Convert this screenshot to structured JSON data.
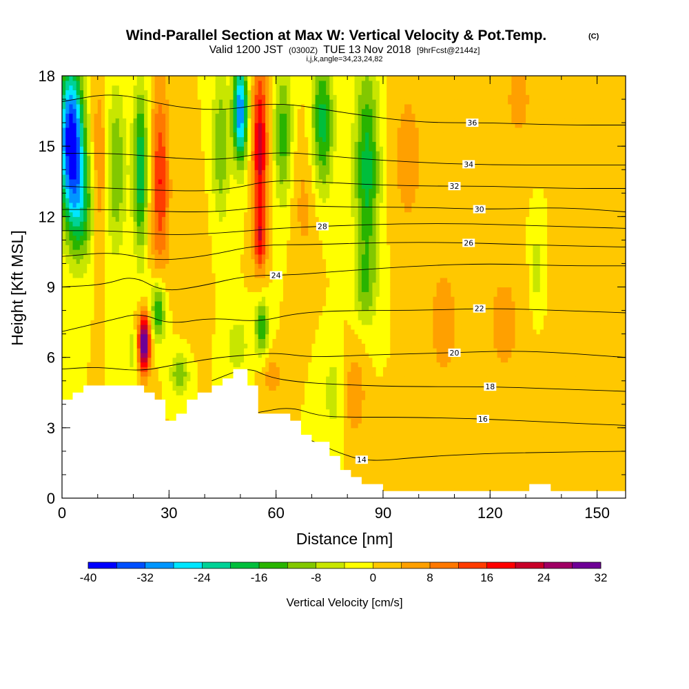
{
  "chart_data": {
    "type": "heatmap",
    "title": "Wind-Parallel Section at Max W: Vertical Velocity & Pot.Temp.",
    "title_tag": "(C)",
    "subtitle": {
      "valid": "Valid 1200 JST",
      "utc": "(0300Z)",
      "date": "TUE 13 Nov 2018",
      "fcst": "[9hrFcst@2144z]"
    },
    "subtitle2": "i,j,k,angle=34,23,24,82",
    "xlabel": "Distance [nm]",
    "ylabel": "Height [Kft MSL]",
    "xlim": [
      0,
      158
    ],
    "ylim": [
      0,
      18
    ],
    "x_ticks": [
      {
        "value": 0,
        "label": "0"
      },
      {
        "value": 30,
        "label": "30"
      },
      {
        "value": 60,
        "label": "60"
      },
      {
        "value": 90,
        "label": "90"
      },
      {
        "value": 120,
        "label": "120"
      },
      {
        "value": 150,
        "label": "150"
      }
    ],
    "y_ticks": [
      {
        "value": 0,
        "label": "0"
      },
      {
        "value": 3,
        "label": "3"
      },
      {
        "value": 6,
        "label": "6"
      },
      {
        "value": 9,
        "label": "9"
      },
      {
        "value": 12,
        "label": "12"
      },
      {
        "value": 15,
        "label": "15"
      },
      {
        "value": 18,
        "label": "18"
      }
    ],
    "background_color": "#ffe600",
    "colorbar": {
      "label": "Vertical Velocity [cm/s]",
      "colors": [
        "#0000ff",
        "#0050ff",
        "#0096ff",
        "#00e6ff",
        "#00d296",
        "#00be3c",
        "#28b400",
        "#82c800",
        "#c8e600",
        "#ffff00",
        "#ffc800",
        "#ffa000",
        "#ff7800",
        "#ff3c00",
        "#ff0000",
        "#c80028",
        "#a00064",
        "#6e0096"
      ],
      "ticks": [
        {
          "value": -40,
          "label": "-40"
        },
        {
          "value": -32,
          "label": "-32"
        },
        {
          "value": -24,
          "label": "-24"
        },
        {
          "value": -16,
          "label": "-16"
        },
        {
          "value": -8,
          "label": "-8"
        },
        {
          "value": 0,
          "label": "0"
        },
        {
          "value": 8,
          "label": "8"
        },
        {
          "value": 16,
          "label": "16"
        },
        {
          "value": 24,
          "label": "24"
        },
        {
          "value": 32,
          "label": "32"
        }
      ]
    },
    "terrain": [
      [
        0,
        4.2
      ],
      [
        3,
        4.2
      ],
      [
        3,
        4.5
      ],
      [
        6,
        4.5
      ],
      [
        6,
        4.8
      ],
      [
        23,
        4.8
      ],
      [
        23,
        4.5
      ],
      [
        26,
        4.5
      ],
      [
        26,
        4.2
      ],
      [
        29,
        4.2
      ],
      [
        29,
        3.3
      ],
      [
        32,
        3.3
      ],
      [
        32,
        3.6
      ],
      [
        35,
        3.6
      ],
      [
        35,
        4.2
      ],
      [
        38,
        4.2
      ],
      [
        38,
        4.5
      ],
      [
        42,
        4.5
      ],
      [
        42,
        4.8
      ],
      [
        45,
        4.8
      ],
      [
        45,
        5.1
      ],
      [
        48,
        5.1
      ],
      [
        48,
        5.5
      ],
      [
        52,
        5.5
      ],
      [
        52,
        4.8
      ],
      [
        55,
        4.8
      ],
      [
        55,
        3.6
      ],
      [
        64,
        3.6
      ],
      [
        64,
        3.3
      ],
      [
        67,
        3.3
      ],
      [
        67,
        2.7
      ],
      [
        70,
        2.7
      ],
      [
        70,
        2.4
      ],
      [
        75,
        2.4
      ],
      [
        75,
        1.8
      ],
      [
        78,
        1.8
      ],
      [
        78,
        1.2
      ],
      [
        81,
        1.2
      ],
      [
        81,
        0.9
      ],
      [
        84,
        0.9
      ],
      [
        84,
        0.6
      ],
      [
        90,
        0.6
      ],
      [
        90,
        0.3
      ],
      [
        131,
        0.3
      ],
      [
        131,
        0.6
      ],
      [
        137,
        0.6
      ],
      [
        137,
        0.3
      ],
      [
        158,
        0.3
      ],
      [
        158,
        0
      ],
      [
        0,
        0
      ]
    ],
    "w_features": [
      {
        "x": 2.5,
        "y": 15.5,
        "sx": 3.5,
        "sy": 3.0,
        "w": -38
      },
      {
        "x": 5.0,
        "y": 12.5,
        "sx": 4.0,
        "sy": 2.5,
        "w": -18
      },
      {
        "x": 10.5,
        "y": 14.0,
        "sx": 2.5,
        "sy": 3.5,
        "w": 10
      },
      {
        "x": 15.0,
        "y": 14.0,
        "sx": 3.0,
        "sy": 3.5,
        "w": -12
      },
      {
        "x": 22.0,
        "y": 14.0,
        "sx": 2.0,
        "sy": 3.5,
        "w": -20
      },
      {
        "x": 27.5,
        "y": 13.5,
        "sx": 2.5,
        "sy": 4.0,
        "w": 16
      },
      {
        "x": 23.0,
        "y": 6.6,
        "sx": 1.7,
        "sy": 1.2,
        "w": 34
      },
      {
        "x": 27.0,
        "y": 8.0,
        "sx": 2.0,
        "sy": 1.3,
        "w": -18
      },
      {
        "x": 20.0,
        "y": 6.3,
        "sx": 1.6,
        "sy": 0.9,
        "w": -8
      },
      {
        "x": 33.0,
        "y": 5.3,
        "sx": 2.5,
        "sy": 0.9,
        "w": -12
      },
      {
        "x": 44.5,
        "y": 15.0,
        "sx": 2.5,
        "sy": 3.0,
        "w": -12
      },
      {
        "x": 50.0,
        "y": 16.5,
        "sx": 2.0,
        "sy": 2.2,
        "w": -32
      },
      {
        "x": 55.5,
        "y": 15.0,
        "sx": 2.1,
        "sy": 3.5,
        "w": 22
      },
      {
        "x": 55.5,
        "y": 11.0,
        "sx": 1.8,
        "sy": 1.4,
        "w": 14
      },
      {
        "x": 62.0,
        "y": 15.5,
        "sx": 2.5,
        "sy": 3.0,
        "w": -14
      },
      {
        "x": 73.0,
        "y": 16.0,
        "sx": 3.0,
        "sy": 3.0,
        "w": -18
      },
      {
        "x": 68.0,
        "y": 12.5,
        "sx": 4.0,
        "sy": 3.0,
        "w": 5
      },
      {
        "x": 85.5,
        "y": 14.0,
        "sx": 3.5,
        "sy": 4.5,
        "w": -18
      },
      {
        "x": 85.0,
        "y": 9.0,
        "sx": 3.0,
        "sy": 1.5,
        "w": -8
      },
      {
        "x": 56.0,
        "y": 7.3,
        "sx": 2.0,
        "sy": 1.2,
        "w": -15
      },
      {
        "x": 49.0,
        "y": 6.5,
        "sx": 3.0,
        "sy": 1.2,
        "w": -8
      },
      {
        "x": 59.0,
        "y": 5.2,
        "sx": 3.0,
        "sy": 1.0,
        "w": 6
      },
      {
        "x": 82.0,
        "y": 4.5,
        "sx": 3.5,
        "sy": 2.0,
        "w": 7
      },
      {
        "x": 76.0,
        "y": 4.5,
        "sx": 3.0,
        "sy": 2.0,
        "w": -6
      },
      {
        "x": 97.0,
        "y": 14.5,
        "sx": 5.0,
        "sy": 3.5,
        "w": 6
      },
      {
        "x": 107.0,
        "y": 7.5,
        "sx": 4.0,
        "sy": 2.5,
        "w": 7
      },
      {
        "x": 124.0,
        "y": 7.5,
        "sx": 5.0,
        "sy": 2.5,
        "w": 6
      },
      {
        "x": 128.0,
        "y": 17.0,
        "sx": 4.0,
        "sy": 2.0,
        "w": 6
      },
      {
        "x": 115.0,
        "y": 13.0,
        "sx": 4.0,
        "sy": 3.0,
        "w": 3
      },
      {
        "x": 133.0,
        "y": 9.8,
        "sx": 1.5,
        "sy": 1.5,
        "w": -7
      },
      {
        "x": 145.0,
        "y": 8.0,
        "sx": 5.0,
        "sy": 3.0,
        "w": 2
      },
      {
        "x": 100.0,
        "y": 3.0,
        "sx": 6.0,
        "sy": 2.0,
        "w": 3
      },
      {
        "x": 130.0,
        "y": 3.0,
        "sx": 6.0,
        "sy": 2.0,
        "w": 3
      },
      {
        "x": 36.0,
        "y": 10.5,
        "sx": 4.0,
        "sy": 3.0,
        "w": 4
      }
    ],
    "theta_contours": [
      {
        "value": 14,
        "label": "14",
        "label_x": 84,
        "points": [
          [
            70,
            2.45
          ],
          [
            78,
            1.9
          ],
          [
            86,
            1.55
          ],
          [
            100,
            1.75
          ],
          [
            118,
            1.9
          ],
          [
            135,
            1.95
          ],
          [
            158,
            2.0
          ]
        ]
      },
      {
        "value": 16,
        "label": "16",
        "label_x": 118,
        "points": [
          [
            55,
            3.65
          ],
          [
            64,
            3.9
          ],
          [
            72,
            3.5
          ],
          [
            80,
            3.45
          ],
          [
            95,
            3.45
          ],
          [
            115,
            3.4
          ],
          [
            135,
            3.25
          ],
          [
            158,
            3.1
          ]
        ]
      },
      {
        "value": 18,
        "label": "18",
        "label_x": 120,
        "points": [
          [
            42,
            5.0
          ],
          [
            52,
            5.6
          ],
          [
            58,
            5.15
          ],
          [
            66,
            4.95
          ],
          [
            76,
            4.85
          ],
          [
            95,
            4.75
          ],
          [
            120,
            4.75
          ],
          [
            140,
            4.65
          ],
          [
            158,
            4.55
          ]
        ]
      },
      {
        "value": 20,
        "label": "20",
        "label_x": 110,
        "points": [
          [
            0,
            5.5
          ],
          [
            10,
            5.6
          ],
          [
            22,
            5.4
          ],
          [
            32,
            5.7
          ],
          [
            44,
            6.0
          ],
          [
            52,
            6.1
          ],
          [
            60,
            6.2
          ],
          [
            70,
            6.0
          ],
          [
            85,
            6.1
          ],
          [
            110,
            6.2
          ],
          [
            130,
            6.3
          ],
          [
            158,
            6.0
          ]
        ]
      },
      {
        "value": 22,
        "label": "22",
        "label_x": 117,
        "points": [
          [
            0,
            7.1
          ],
          [
            14,
            7.6
          ],
          [
            22,
            7.9
          ],
          [
            30,
            7.4
          ],
          [
            42,
            7.7
          ],
          [
            55,
            7.5
          ],
          [
            66,
            7.9
          ],
          [
            80,
            8.0
          ],
          [
            100,
            8.0
          ],
          [
            120,
            8.1
          ],
          [
            140,
            8.0
          ],
          [
            158,
            7.9
          ]
        ]
      },
      {
        "value": 24,
        "label": "24",
        "label_x": 60,
        "points": [
          [
            0,
            9.0
          ],
          [
            12,
            9.1
          ],
          [
            20,
            9.5
          ],
          [
            28,
            8.8
          ],
          [
            38,
            9.0
          ],
          [
            52,
            9.5
          ],
          [
            64,
            9.5
          ],
          [
            80,
            9.7
          ],
          [
            100,
            9.9
          ],
          [
            120,
            10.0
          ],
          [
            140,
            9.9
          ],
          [
            158,
            9.9
          ]
        ]
      },
      {
        "value": 26,
        "label": "26",
        "label_x": 114,
        "points": [
          [
            0,
            10.3
          ],
          [
            15,
            10.5
          ],
          [
            26,
            10.1
          ],
          [
            40,
            10.3
          ],
          [
            55,
            10.8
          ],
          [
            70,
            10.8
          ],
          [
            90,
            10.9
          ],
          [
            110,
            10.9
          ],
          [
            130,
            10.8
          ],
          [
            158,
            10.7
          ]
        ]
      },
      {
        "value": 28,
        "label": "28",
        "label_x": 73,
        "points": [
          [
            0,
            11.4
          ],
          [
            15,
            11.4
          ],
          [
            30,
            11.2
          ],
          [
            45,
            11.3
          ],
          [
            60,
            11.5
          ],
          [
            75,
            11.6
          ],
          [
            95,
            11.7
          ],
          [
            115,
            11.7
          ],
          [
            135,
            11.6
          ],
          [
            158,
            11.5
          ]
        ]
      },
      {
        "value": 30,
        "label": "30",
        "label_x": 117,
        "points": [
          [
            0,
            12.3
          ],
          [
            15,
            12.3
          ],
          [
            30,
            12.2
          ],
          [
            45,
            12.2
          ],
          [
            60,
            12.5
          ],
          [
            80,
            12.4
          ],
          [
            100,
            12.4
          ],
          [
            120,
            12.3
          ],
          [
            140,
            12.4
          ],
          [
            158,
            12.2
          ]
        ]
      },
      {
        "value": 32,
        "label": "32",
        "label_x": 110,
        "points": [
          [
            0,
            13.3
          ],
          [
            15,
            13.2
          ],
          [
            30,
            13.1
          ],
          [
            45,
            13.1
          ],
          [
            60,
            13.6
          ],
          [
            80,
            13.4
          ],
          [
            100,
            13.3
          ],
          [
            120,
            13.3
          ],
          [
            140,
            13.2
          ],
          [
            158,
            13.2
          ]
        ]
      },
      {
        "value": 34,
        "label": "34",
        "label_x": 114,
        "points": [
          [
            0,
            14.7
          ],
          [
            15,
            14.7
          ],
          [
            30,
            14.5
          ],
          [
            45,
            14.4
          ],
          [
            60,
            14.8
          ],
          [
            80,
            14.5
          ],
          [
            100,
            14.3
          ],
          [
            120,
            14.2
          ],
          [
            140,
            14.2
          ],
          [
            158,
            14.2
          ]
        ]
      },
      {
        "value": 36,
        "label": "36",
        "label_x": 115,
        "points": [
          [
            0,
            16.9
          ],
          [
            15,
            17.3
          ],
          [
            30,
            16.7
          ],
          [
            45,
            16.5
          ],
          [
            60,
            16.9
          ],
          [
            80,
            16.4
          ],
          [
            100,
            16.0
          ],
          [
            120,
            16.0
          ],
          [
            140,
            15.9
          ],
          [
            158,
            15.9
          ]
        ]
      }
    ]
  }
}
